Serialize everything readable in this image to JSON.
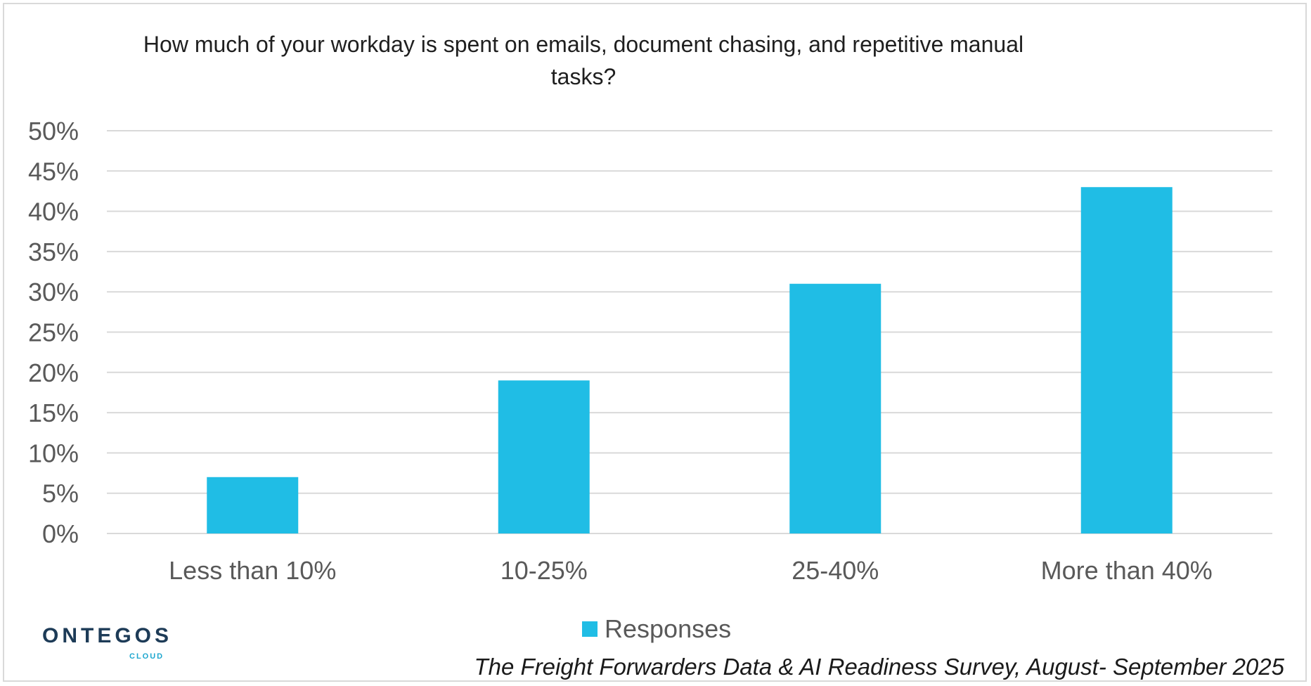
{
  "chart_data": {
    "type": "bar",
    "title": "How much of your workday is spent on emails, document chasing, and repetitive manual tasks?",
    "categories": [
      "Less than 10%",
      "10-25%",
      "25-40%",
      "More than 40%"
    ],
    "series": [
      {
        "name": "Responses",
        "values": [
          7,
          19,
          31,
          43
        ],
        "color": "#20bde5"
      }
    ],
    "ylim": [
      0,
      50
    ],
    "yticks": [
      0,
      5,
      10,
      15,
      20,
      25,
      30,
      35,
      40,
      45,
      50
    ],
    "ytick_labels": [
      "0%",
      "5%",
      "10%",
      "15%",
      "20%",
      "25%",
      "30%",
      "35%",
      "40%",
      "45%",
      "50%"
    ],
    "grid": true,
    "legend_position": "bottom"
  },
  "branding": {
    "logo_text": "ONTEGOS",
    "logo_subtext": "CLOUD"
  },
  "source": "The Freight Forwarders Data & AI Readiness Survey, August- September 2025"
}
